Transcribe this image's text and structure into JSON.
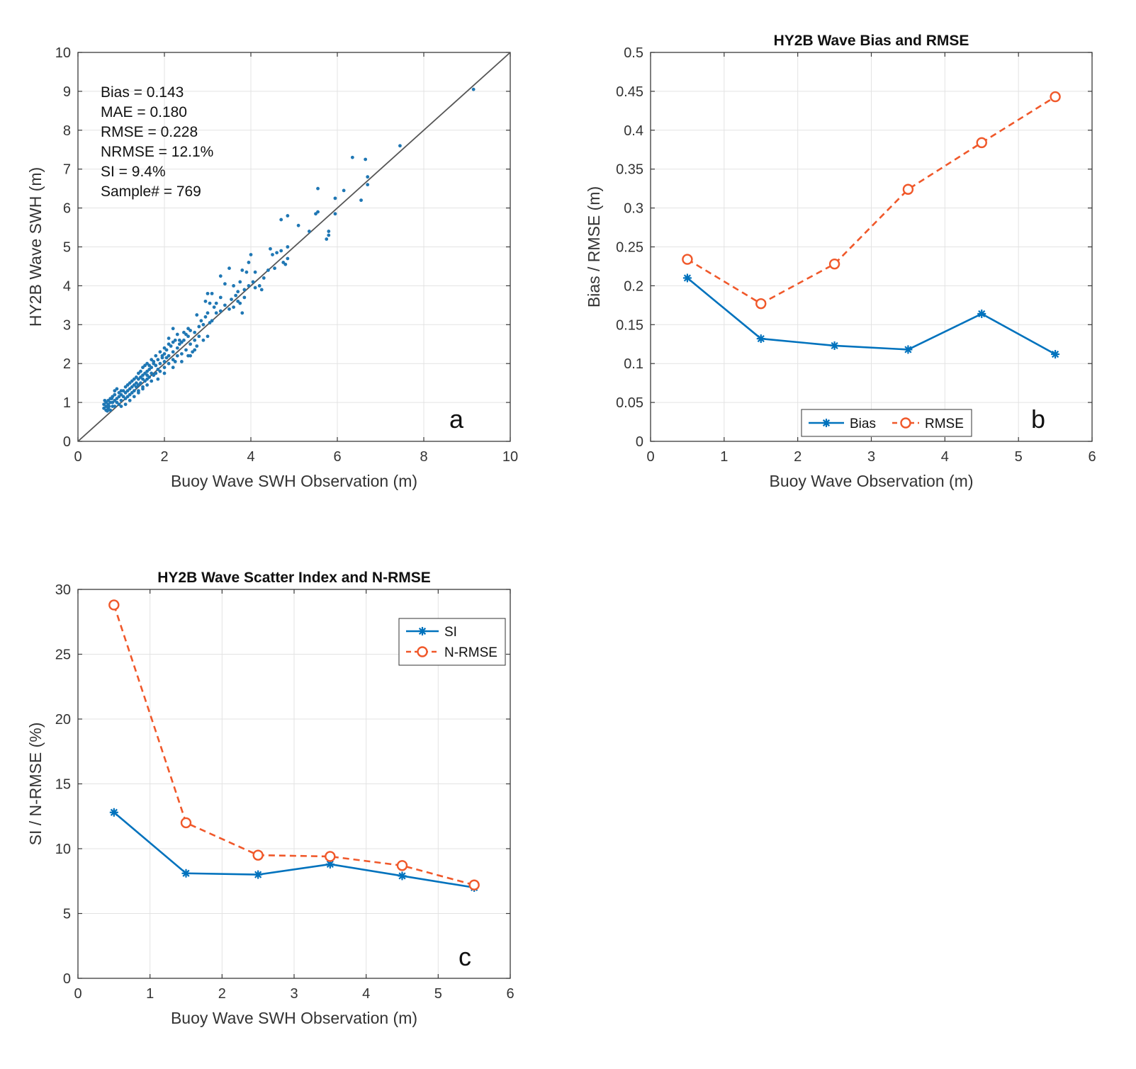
{
  "chart_data": [
    {
      "id": "a",
      "type": "scatter",
      "title": "",
      "panel_letter": "a",
      "xlabel": "Buoy Wave SWH Observation (m)",
      "ylabel": "HY2B Wave SWH (m)",
      "xlim": [
        0,
        10
      ],
      "ylim": [
        0,
        10
      ],
      "xticks": [
        "0",
        "2",
        "4",
        "6",
        "8",
        "10"
      ],
      "yticks": [
        "0",
        "1",
        "2",
        "3",
        "4",
        "5",
        "6",
        "7",
        "8",
        "9",
        "10"
      ],
      "grid": true,
      "reference_line": "1:1",
      "stats": [
        "Bias = 0.143",
        "MAE = 0.180",
        "RMSE = 0.228",
        "NRMSE = 12.1%",
        "SI = 9.4%",
        "Sample# = 769"
      ],
      "marker_color": "#1f77b4",
      "points": [
        [
          9.15,
          9.05
        ],
        [
          7.45,
          7.6
        ],
        [
          6.35,
          7.3
        ],
        [
          6.65,
          7.25
        ],
        [
          6.7,
          6.8
        ],
        [
          6.7,
          6.6
        ],
        [
          6.15,
          6.45
        ],
        [
          6.55,
          6.2
        ],
        [
          5.55,
          6.5
        ],
        [
          5.95,
          6.25
        ],
        [
          5.95,
          5.85
        ],
        [
          5.55,
          5.9
        ],
        [
          5.5,
          5.85
        ],
        [
          5.35,
          5.4
        ],
        [
          5.8,
          5.4
        ],
        [
          5.8,
          5.3
        ],
        [
          5.75,
          5.2
        ],
        [
          5.1,
          5.55
        ],
        [
          4.85,
          5.8
        ],
        [
          4.7,
          5.7
        ],
        [
          4.85,
          5.0
        ],
        [
          4.7,
          4.9
        ],
        [
          4.6,
          4.85
        ],
        [
          4.45,
          4.95
        ],
        [
          4.5,
          4.8
        ],
        [
          4.85,
          4.7
        ],
        [
          4.75,
          4.6
        ],
        [
          4.8,
          4.55
        ],
        [
          4.55,
          4.45
        ],
        [
          4.4,
          4.4
        ],
        [
          4.3,
          4.2
        ],
        [
          4.0,
          4.8
        ],
        [
          4.1,
          4.35
        ],
        [
          3.95,
          4.6
        ],
        [
          3.9,
          4.35
        ],
        [
          3.8,
          4.4
        ],
        [
          3.75,
          4.1
        ],
        [
          3.95,
          4.0
        ],
        [
          4.1,
          3.95
        ],
        [
          4.2,
          4.0
        ],
        [
          4.25,
          3.9
        ],
        [
          3.85,
          3.9
        ],
        [
          3.7,
          3.85
        ],
        [
          3.6,
          4.0
        ],
        [
          3.65,
          3.75
        ],
        [
          3.5,
          4.45
        ],
        [
          3.4,
          4.05
        ],
        [
          3.3,
          4.25
        ],
        [
          3.75,
          3.55
        ],
        [
          3.6,
          3.45
        ],
        [
          3.5,
          3.4
        ],
        [
          3.8,
          3.3
        ],
        [
          3.4,
          3.5
        ],
        [
          3.3,
          3.35
        ],
        [
          3.2,
          3.3
        ],
        [
          3.1,
          3.8
        ],
        [
          3.0,
          3.8
        ],
        [
          2.95,
          3.6
        ],
        [
          3.05,
          3.55
        ],
        [
          3.15,
          3.45
        ],
        [
          3.0,
          3.3
        ],
        [
          2.95,
          3.2
        ],
        [
          3.1,
          3.1
        ],
        [
          3.05,
          3.05
        ],
        [
          2.9,
          3.0
        ],
        [
          2.8,
          2.95
        ],
        [
          2.75,
          3.25
        ],
        [
          2.7,
          2.8
        ],
        [
          2.6,
          2.85
        ],
        [
          2.55,
          2.7
        ],
        [
          2.5,
          2.75
        ],
        [
          2.45,
          2.6
        ],
        [
          2.4,
          2.55
        ],
        [
          2.35,
          2.5
        ],
        [
          2.3,
          2.4
        ],
        [
          2.6,
          2.5
        ],
        [
          2.7,
          2.6
        ],
        [
          2.8,
          2.7
        ],
        [
          2.65,
          2.3
        ],
        [
          2.5,
          2.35
        ],
        [
          2.4,
          2.25
        ],
        [
          2.3,
          2.2
        ],
        [
          2.2,
          2.9
        ],
        [
          2.1,
          2.65
        ],
        [
          2.3,
          2.75
        ],
        [
          2.25,
          2.6
        ],
        [
          2.15,
          2.45
        ],
        [
          2.05,
          2.35
        ],
        [
          2.2,
          2.3
        ],
        [
          2.1,
          2.2
        ],
        [
          2.0,
          2.25
        ],
        [
          1.95,
          2.15
        ],
        [
          2.0,
          2.05
        ],
        [
          2.1,
          2.0
        ],
        [
          2.2,
          2.1
        ],
        [
          2.25,
          2.05
        ],
        [
          1.9,
          2.0
        ],
        [
          1.85,
          2.1
        ],
        [
          1.8,
          1.95
        ],
        [
          1.75,
          2.0
        ],
        [
          1.7,
          1.9
        ],
        [
          1.85,
          1.85
        ],
        [
          1.9,
          1.8
        ],
        [
          2.0,
          1.9
        ],
        [
          1.65,
          1.85
        ],
        [
          1.6,
          1.8
        ],
        [
          1.55,
          1.75
        ],
        [
          1.6,
          1.7
        ],
        [
          1.7,
          1.75
        ],
        [
          1.75,
          1.7
        ],
        [
          1.8,
          1.75
        ],
        [
          1.55,
          1.95
        ],
        [
          1.5,
          1.7
        ],
        [
          1.45,
          1.65
        ],
        [
          1.4,
          1.6
        ],
        [
          1.5,
          1.6
        ],
        [
          1.55,
          1.55
        ],
        [
          1.6,
          1.6
        ],
        [
          1.65,
          1.65
        ],
        [
          1.35,
          1.5
        ],
        [
          1.3,
          1.45
        ],
        [
          1.35,
          1.4
        ],
        [
          1.4,
          1.45
        ],
        [
          1.45,
          1.5
        ],
        [
          1.25,
          1.4
        ],
        [
          1.2,
          1.35
        ],
        [
          1.3,
          1.3
        ],
        [
          1.4,
          1.3
        ],
        [
          1.5,
          1.4
        ],
        [
          1.15,
          1.3
        ],
        [
          1.1,
          1.25
        ],
        [
          1.2,
          1.2
        ],
        [
          1.25,
          1.25
        ],
        [
          1.0,
          1.2
        ],
        [
          1.05,
          1.15
        ],
        [
          1.1,
          1.1
        ],
        [
          1.15,
          1.15
        ],
        [
          0.95,
          1.15
        ],
        [
          0.9,
          1.1
        ],
        [
          1.0,
          1.05
        ],
        [
          0.85,
          1.05
        ],
        [
          0.8,
          1.0
        ],
        [
          0.9,
          1.0
        ],
        [
          0.95,
          0.95
        ],
        [
          0.75,
          1.0
        ],
        [
          0.7,
          0.95
        ],
        [
          0.8,
          0.9
        ],
        [
          0.85,
          0.9
        ],
        [
          0.65,
          0.9
        ],
        [
          0.7,
          0.85
        ],
        [
          0.75,
          0.8
        ],
        [
          0.65,
          0.8
        ],
        [
          0.7,
          1.05
        ],
        [
          0.65,
          1.0
        ],
        [
          0.75,
          1.1
        ],
        [
          0.8,
          1.15
        ],
        [
          0.85,
          1.3
        ],
        [
          0.9,
          1.35
        ],
        [
          1.0,
          1.3
        ],
        [
          1.1,
          1.4
        ],
        [
          1.2,
          1.5
        ],
        [
          1.3,
          1.6
        ],
        [
          1.4,
          1.75
        ],
        [
          1.5,
          1.9
        ],
        [
          1.6,
          2.0
        ],
        [
          1.7,
          2.1
        ],
        [
          1.8,
          2.2
        ],
        [
          1.9,
          2.3
        ],
        [
          2.0,
          2.4
        ],
        [
          2.1,
          2.5
        ],
        [
          2.2,
          2.55
        ],
        [
          1.85,
          1.6
        ],
        [
          1.7,
          1.55
        ],
        [
          1.6,
          1.45
        ],
        [
          1.5,
          1.35
        ],
        [
          1.4,
          1.25
        ],
        [
          1.3,
          1.15
        ],
        [
          1.2,
          1.05
        ],
        [
          1.1,
          0.95
        ],
        [
          1.0,
          0.9
        ],
        [
          2.0,
          1.75
        ],
        [
          2.2,
          1.9
        ],
        [
          2.4,
          2.05
        ],
        [
          2.55,
          2.2
        ],
        [
          2.75,
          2.45
        ],
        [
          2.9,
          2.6
        ],
        [
          3.0,
          2.7
        ],
        [
          2.7,
          2.35
        ],
        [
          2.6,
          2.2
        ],
        [
          0.6,
          0.85
        ],
        [
          0.6,
          0.95
        ],
        [
          0.62,
          1.05
        ],
        [
          1.65,
          1.95
        ],
        [
          1.75,
          2.05
        ],
        [
          1.95,
          2.2
        ],
        [
          2.05,
          2.15
        ],
        [
          2.35,
          2.6
        ],
        [
          2.45,
          2.8
        ],
        [
          2.55,
          2.9
        ],
        [
          2.85,
          3.1
        ],
        [
          3.2,
          3.55
        ],
        [
          3.3,
          3.7
        ],
        [
          3.55,
          3.65
        ],
        [
          3.7,
          3.6
        ],
        [
          3.85,
          3.7
        ],
        [
          4.05,
          4.1
        ],
        [
          1.25,
          1.55
        ],
        [
          1.35,
          1.65
        ],
        [
          1.45,
          1.8
        ],
        [
          1.15,
          1.45
        ],
        [
          1.05,
          1.3
        ],
        [
          0.95,
          1.25
        ],
        [
          0.85,
          1.2
        ],
        [
          0.78,
          1.1
        ],
        [
          0.72,
          0.9
        ],
        [
          0.68,
          0.78
        ]
      ]
    },
    {
      "id": "b",
      "type": "line",
      "title": "HY2B Wave Bias and RMSE",
      "panel_letter": "b",
      "xlabel": "Buoy Wave Observation (m)",
      "ylabel": "Bias / RMSE (m)",
      "xlim": [
        0,
        6
      ],
      "ylim": [
        0,
        0.5
      ],
      "xticks": [
        "0",
        "1",
        "2",
        "3",
        "4",
        "5",
        "6"
      ],
      "yticks": [
        "0",
        "0.05",
        "0.1",
        "0.15",
        "0.2",
        "0.25",
        "0.3",
        "0.35",
        "0.4",
        "0.45",
        "0.5"
      ],
      "grid": true,
      "legend": "bottom-center",
      "x": [
        0.5,
        1.5,
        2.5,
        3.5,
        4.5,
        5.5
      ],
      "series": [
        {
          "name": "Bias",
          "values": [
            0.21,
            0.132,
            0.123,
            0.118,
            0.164,
            0.112
          ],
          "color": "#0072bd",
          "style": "solid",
          "marker": "asterisk"
        },
        {
          "name": "RMSE",
          "values": [
            0.234,
            0.177,
            0.228,
            0.324,
            0.384,
            0.443
          ],
          "color": "#f0582a",
          "style": "dashed",
          "marker": "circle"
        }
      ]
    },
    {
      "id": "c",
      "type": "line",
      "title": "HY2B Wave Scatter Index and N-RMSE",
      "panel_letter": "c",
      "xlabel": "Buoy Wave SWH Observation (m)",
      "ylabel": "SI / N-RMSE (%)",
      "xlim": [
        0,
        6
      ],
      "ylim": [
        0,
        30
      ],
      "xticks": [
        "0",
        "1",
        "2",
        "3",
        "4",
        "5",
        "6"
      ],
      "yticks": [
        "0",
        "5",
        "10",
        "15",
        "20",
        "25",
        "30"
      ],
      "grid": true,
      "legend": "top-right",
      "x": [
        0.5,
        1.5,
        2.5,
        3.5,
        4.5,
        5.5
      ],
      "series": [
        {
          "name": "SI",
          "values": [
            12.8,
            8.1,
            8.0,
            8.8,
            7.9,
            7.0
          ],
          "color": "#0072bd",
          "style": "solid",
          "marker": "asterisk"
        },
        {
          "name": "N-RMSE",
          "values": [
            28.8,
            12.0,
            9.5,
            9.4,
            8.7,
            7.2
          ],
          "color": "#f0582a",
          "style": "dashed",
          "marker": "circle"
        }
      ]
    }
  ]
}
